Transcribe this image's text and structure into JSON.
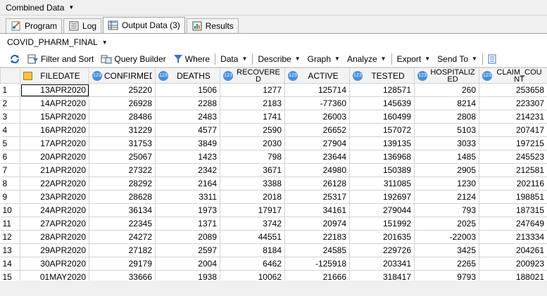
{
  "window": {
    "title": "Combined Data"
  },
  "tabs": [
    {
      "label": "Program",
      "icon": "program-icon"
    },
    {
      "label": "Log",
      "icon": "log-icon"
    },
    {
      "label": "Output Data (3)",
      "icon": "output-data-icon"
    },
    {
      "label": "Results",
      "icon": "results-icon"
    }
  ],
  "dataset": {
    "name": "COVID_PHARM_FINAL"
  },
  "toolbar": {
    "filter_sort": "Filter and Sort",
    "query_builder": "Query Builder",
    "where": "Where",
    "data": "Data",
    "describe": "Describe",
    "graph": "Graph",
    "analyze": "Analyze",
    "export": "Export",
    "send_to": "Send To"
  },
  "table": {
    "columns": [
      "FILEDATE",
      "CONFIRMED",
      "DEATHS",
      "RECOVERED",
      "ACTIVE",
      "TESTED",
      "HOSPITALIZED",
      "CLAIM_COUNT"
    ],
    "rows": [
      [
        "1",
        "13APR2020",
        "25220",
        "1506",
        "1277",
        "125714",
        "128571",
        "260",
        "253658"
      ],
      [
        "2",
        "14APR2020",
        "26928",
        "2288",
        "2183",
        "-77360",
        "145639",
        "8214",
        "223307"
      ],
      [
        "3",
        "15APR2020",
        "28486",
        "2483",
        "1741",
        "26003",
        "160499",
        "2808",
        "214231"
      ],
      [
        "4",
        "16APR2020",
        "31229",
        "4577",
        "2590",
        "26652",
        "157072",
        "5103",
        "207417"
      ],
      [
        "5",
        "17APR2020",
        "31753",
        "3849",
        "2030",
        "27904",
        "139135",
        "3033",
        "197215"
      ],
      [
        "6",
        "20APR2020",
        "25067",
        "1423",
        "798",
        "23644",
        "136968",
        "1485",
        "245523"
      ],
      [
        "7",
        "21APR2020",
        "27322",
        "2342",
        "3671",
        "24980",
        "150389",
        "2905",
        "212581"
      ],
      [
        "8",
        "22APR2020",
        "28292",
        "2164",
        "3388",
        "26128",
        "311085",
        "1230",
        "202116"
      ],
      [
        "9",
        "23APR2020",
        "28628",
        "3311",
        "2018",
        "25317",
        "192697",
        "2124",
        "198851"
      ],
      [
        "10",
        "24APR2020",
        "36134",
        "1973",
        "17917",
        "34161",
        "279044",
        "793",
        "187315"
      ],
      [
        "11",
        "27APR2020",
        "22345",
        "1371",
        "3742",
        "20974",
        "151992",
        "2025",
        "247649"
      ],
      [
        "12",
        "28APR2020",
        "24272",
        "2089",
        "44551",
        "22183",
        "201635",
        "-22003",
        "213334"
      ],
      [
        "13",
        "29APR2020",
        "27182",
        "2597",
        "8184",
        "24585",
        "229726",
        "3425",
        "204261"
      ],
      [
        "14",
        "30APR2020",
        "29179",
        "2004",
        "6462",
        "-125918",
        "203341",
        "2265",
        "200923"
      ],
      [
        "15",
        "01MAY2020",
        "33666",
        "1938",
        "10062",
        "21666",
        "318417",
        "9793",
        "188021"
      ]
    ]
  }
}
